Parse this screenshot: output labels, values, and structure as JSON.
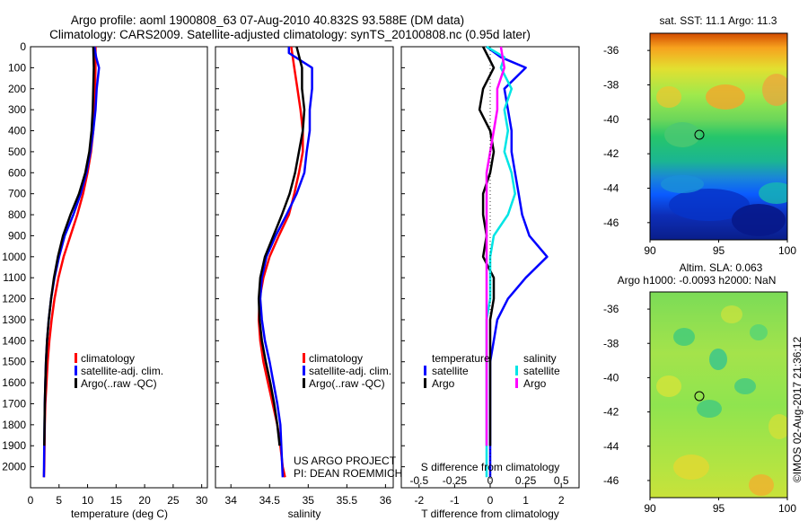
{
  "header": {
    "title_line1": "Argo profile: aoml 1900808_63 07-Aug-2010 40.832S 93.588E (DM data)",
    "title_line2": "Climatology: CARS2009. Satellite-adjusted climatology: synTS_20100808.nc (0.95d later)"
  },
  "credit": {
    "project": "US ARGO PROJECT",
    "pi": "PI: DEAN ROEMMICH",
    "imos": "©IMOS 02-Aug-2017 21:36:12"
  },
  "colors": {
    "climatology": "#ff0000",
    "satellite": "#0000ff",
    "argo": "#000000",
    "satellite_salinity": "#00e5e5",
    "argo_salinity": "#ff00ff"
  },
  "chart_data": [
    {
      "type": "line",
      "id": "temperature",
      "xlabel": "temperature (deg C)",
      "ylabel": "",
      "xlim": [
        0,
        31
      ],
      "ylim": [
        2100,
        0
      ],
      "xticks": [
        0,
        5,
        10,
        15,
        20,
        25,
        30
      ],
      "yticks": [
        0,
        100,
        200,
        300,
        400,
        500,
        600,
        700,
        800,
        900,
        1000,
        1100,
        1200,
        1300,
        1400,
        1500,
        1600,
        1700,
        1800,
        1900,
        2000
      ],
      "legend": [
        "climatology",
        "satellite-adj. clim.",
        "Argo(..raw -QC)"
      ],
      "legend_position": "lower-right",
      "series": [
        {
          "name": "climatology",
          "color": "#ff0000",
          "x": [
            11.4,
            11.4,
            11.3,
            11.2,
            11.0,
            10.6,
            10.0,
            9.2,
            8.2,
            7.0,
            5.8,
            4.9,
            4.2,
            3.7,
            3.3,
            3.0,
            2.8,
            2.6,
            2.5,
            2.45,
            2.4,
            2.35
          ],
          "y": [
            0,
            100,
            200,
            300,
            400,
            500,
            600,
            700,
            800,
            900,
            1000,
            1100,
            1200,
            1300,
            1400,
            1500,
            1600,
            1700,
            1800,
            1900,
            2000,
            2050
          ]
        },
        {
          "name": "satellite-adj. clim.",
          "color": "#0000ff",
          "x": [
            11.2,
            11.5,
            12.0,
            11.6,
            11.4,
            11.0,
            10.5,
            9.8,
            8.8,
            7.5,
            6.0,
            5.0,
            4.2,
            3.6,
            3.2,
            2.9,
            2.7,
            2.6,
            2.5,
            2.45,
            2.4,
            2.35
          ],
          "y": [
            0,
            50,
            100,
            200,
            300,
            400,
            500,
            600,
            700,
            800,
            900,
            1000,
            1100,
            1200,
            1300,
            1400,
            1500,
            1600,
            1700,
            1800,
            1900,
            2050
          ]
        },
        {
          "name": "Argo(..raw -QC)",
          "color": "#000000",
          "x": [
            11.0,
            11.1,
            11.0,
            10.9,
            10.7,
            10.3,
            9.6,
            8.5,
            7.0,
            5.7,
            4.8,
            4.1,
            3.6,
            3.2,
            2.9,
            2.7,
            2.6,
            2.5,
            2.45,
            2.4
          ],
          "y": [
            0,
            100,
            200,
            300,
            400,
            500,
            600,
            700,
            800,
            900,
            1000,
            1100,
            1200,
            1300,
            1400,
            1500,
            1600,
            1700,
            1800,
            1900
          ]
        }
      ]
    },
    {
      "type": "line",
      "id": "salinity",
      "xlabel": "salinity",
      "ylabel": "",
      "xlim": [
        33.8,
        36.1
      ],
      "ylim": [
        2100,
        0
      ],
      "xticks": [
        34,
        34.5,
        35,
        35.5,
        36
      ],
      "legend": [
        "climatology",
        "satellite-adj. clim.",
        "Argo(..raw -QC)"
      ],
      "legend_position": "lower-right",
      "series": [
        {
          "name": "climatology",
          "color": "#ff0000",
          "x": [
            34.78,
            34.82,
            34.86,
            34.9,
            34.93,
            34.93,
            34.88,
            34.82,
            34.75,
            34.62,
            34.5,
            34.42,
            34.37,
            34.36,
            34.38,
            34.42,
            34.48,
            34.54,
            34.6,
            34.64,
            34.67,
            34.7
          ],
          "y": [
            0,
            100,
            200,
            300,
            400,
            500,
            600,
            700,
            800,
            900,
            1000,
            1100,
            1200,
            1300,
            1400,
            1500,
            1600,
            1700,
            1800,
            1900,
            2000,
            2050
          ]
        },
        {
          "name": "satellite-adj. clim.",
          "color": "#0000ff",
          "x": [
            34.75,
            34.75,
            35.05,
            35.05,
            35.02,
            35.02,
            34.98,
            34.95,
            34.85,
            34.72,
            34.58,
            34.46,
            34.4,
            34.38,
            34.4,
            34.44,
            34.5,
            34.55,
            34.6,
            34.64,
            34.67
          ],
          "y": [
            0,
            30,
            100,
            200,
            300,
            400,
            500,
            600,
            700,
            800,
            900,
            1000,
            1100,
            1200,
            1300,
            1400,
            1500,
            1600,
            1700,
            1800,
            2050
          ]
        },
        {
          "name": "Argo(..raw -QC)",
          "color": "#000000",
          "x": [
            34.85,
            34.92,
            34.92,
            34.95,
            34.93,
            34.88,
            34.83,
            34.76,
            34.66,
            34.55,
            34.44,
            34.38,
            34.36,
            34.37,
            34.4,
            34.45,
            34.51,
            34.56,
            34.6,
            34.63
          ],
          "y": [
            0,
            100,
            200,
            300,
            400,
            500,
            600,
            700,
            800,
            900,
            1000,
            1100,
            1200,
            1300,
            1400,
            1500,
            1600,
            1700,
            1800,
            1900
          ]
        }
      ]
    },
    {
      "type": "line",
      "id": "differences",
      "xlabel": "T difference from climatology",
      "xlabel_top": "S difference from climatology",
      "ylabel": "",
      "xlim": [
        -2.5,
        2.5
      ],
      "ylim": [
        2100,
        0
      ],
      "xticks": [
        -2,
        -1,
        0,
        1,
        2
      ],
      "s_ticks": [
        -0.5,
        -0.25,
        0,
        0.25,
        0.5
      ],
      "s_scale_note": "S difference axis is T difference scaled by 0.25",
      "legend_groups": [
        {
          "title": "temperature",
          "items": [
            "satellite",
            "Argo"
          ]
        },
        {
          "title": "salinity",
          "items": [
            "satellite",
            "Argo"
          ]
        }
      ],
      "legend_position": "lower-center",
      "series": [
        {
          "name": "temperature satellite",
          "color": "#0000ff",
          "x": [
            -0.1,
            0.3,
            1.0,
            0.4,
            0.5,
            0.6,
            0.6,
            0.7,
            0.8,
            0.9,
            1.1,
            1.6,
            1.0,
            0.5,
            0.2,
            0.1,
            0.0,
            0.0,
            0.0,
            0.0,
            0.0
          ],
          "y": [
            0,
            50,
            100,
            200,
            300,
            400,
            500,
            600,
            700,
            800,
            900,
            1000,
            1100,
            1200,
            1300,
            1400,
            1500,
            1600,
            1700,
            1800,
            2050
          ]
        },
        {
          "name": "temperature Argo",
          "color": "#000000",
          "x": [
            -0.2,
            0.1,
            -0.2,
            -0.3,
            0.0,
            0.1,
            0.0,
            -0.2,
            -0.2,
            -0.1,
            -0.2,
            0.1,
            0.1,
            0.0,
            0.0,
            0.0,
            0.0,
            0.0,
            0.0,
            0.0
          ],
          "y": [
            0,
            100,
            200,
            300,
            400,
            500,
            600,
            700,
            800,
            900,
            1000,
            1100,
            1200,
            1300,
            1400,
            1500,
            1600,
            1700,
            1800,
            1900
          ]
        },
        {
          "name": "salinity satellite",
          "color": "#00e5e5",
          "x": [
            -0.1,
            0.4,
            0.3,
            0.6,
            0.4,
            0.5,
            0.4,
            0.6,
            0.7,
            0.5,
            0.1,
            0.0,
            0.0,
            0.0,
            -0.1,
            -0.1,
            -0.1,
            -0.1,
            -0.1,
            -0.1,
            -0.1
          ],
          "y": [
            0,
            50,
            100,
            200,
            300,
            400,
            500,
            600,
            700,
            800,
            900,
            1000,
            1100,
            1200,
            1300,
            1400,
            1500,
            1600,
            1700,
            1800,
            2050
          ]
        },
        {
          "name": "salinity Argo",
          "color": "#ff00ff",
          "x": [
            0.3,
            0.4,
            0.2,
            0.2,
            0.1,
            0.0,
            -0.1,
            -0.1,
            -0.1,
            -0.1,
            -0.1,
            -0.1,
            -0.1,
            -0.1,
            -0.1,
            -0.1,
            -0.1,
            -0.1,
            -0.1,
            -0.1
          ],
          "y": [
            0,
            100,
            200,
            300,
            400,
            500,
            600,
            700,
            800,
            900,
            1000,
            1100,
            1200,
            1300,
            1400,
            1500,
            1600,
            1700,
            1800,
            1900
          ]
        }
      ]
    },
    {
      "type": "heatmap",
      "id": "sst_map",
      "title": "sat. SST: 11.1  Argo: 11.3",
      "xlim": [
        90,
        100
      ],
      "ylim": [
        -47,
        -35
      ],
      "xticks": [
        90,
        95,
        100
      ],
      "yticks": [
        -36,
        -38,
        -40,
        -42,
        -44,
        -46
      ],
      "marker": {
        "lon": 93.588,
        "lat": -40.832
      }
    },
    {
      "type": "heatmap",
      "id": "sla_map",
      "title_line1": "Altim. SLA: 0.063",
      "title_line2": "Argo h1000: -0.0093 h2000: NaN",
      "xlim": [
        90,
        100
      ],
      "ylim": [
        -47,
        -35
      ],
      "xticks": [
        90,
        95,
        100
      ],
      "yticks": [
        -36,
        -38,
        -40,
        -42,
        -44,
        -46
      ],
      "marker": {
        "lon": 93.588,
        "lat": -40.832
      }
    }
  ]
}
